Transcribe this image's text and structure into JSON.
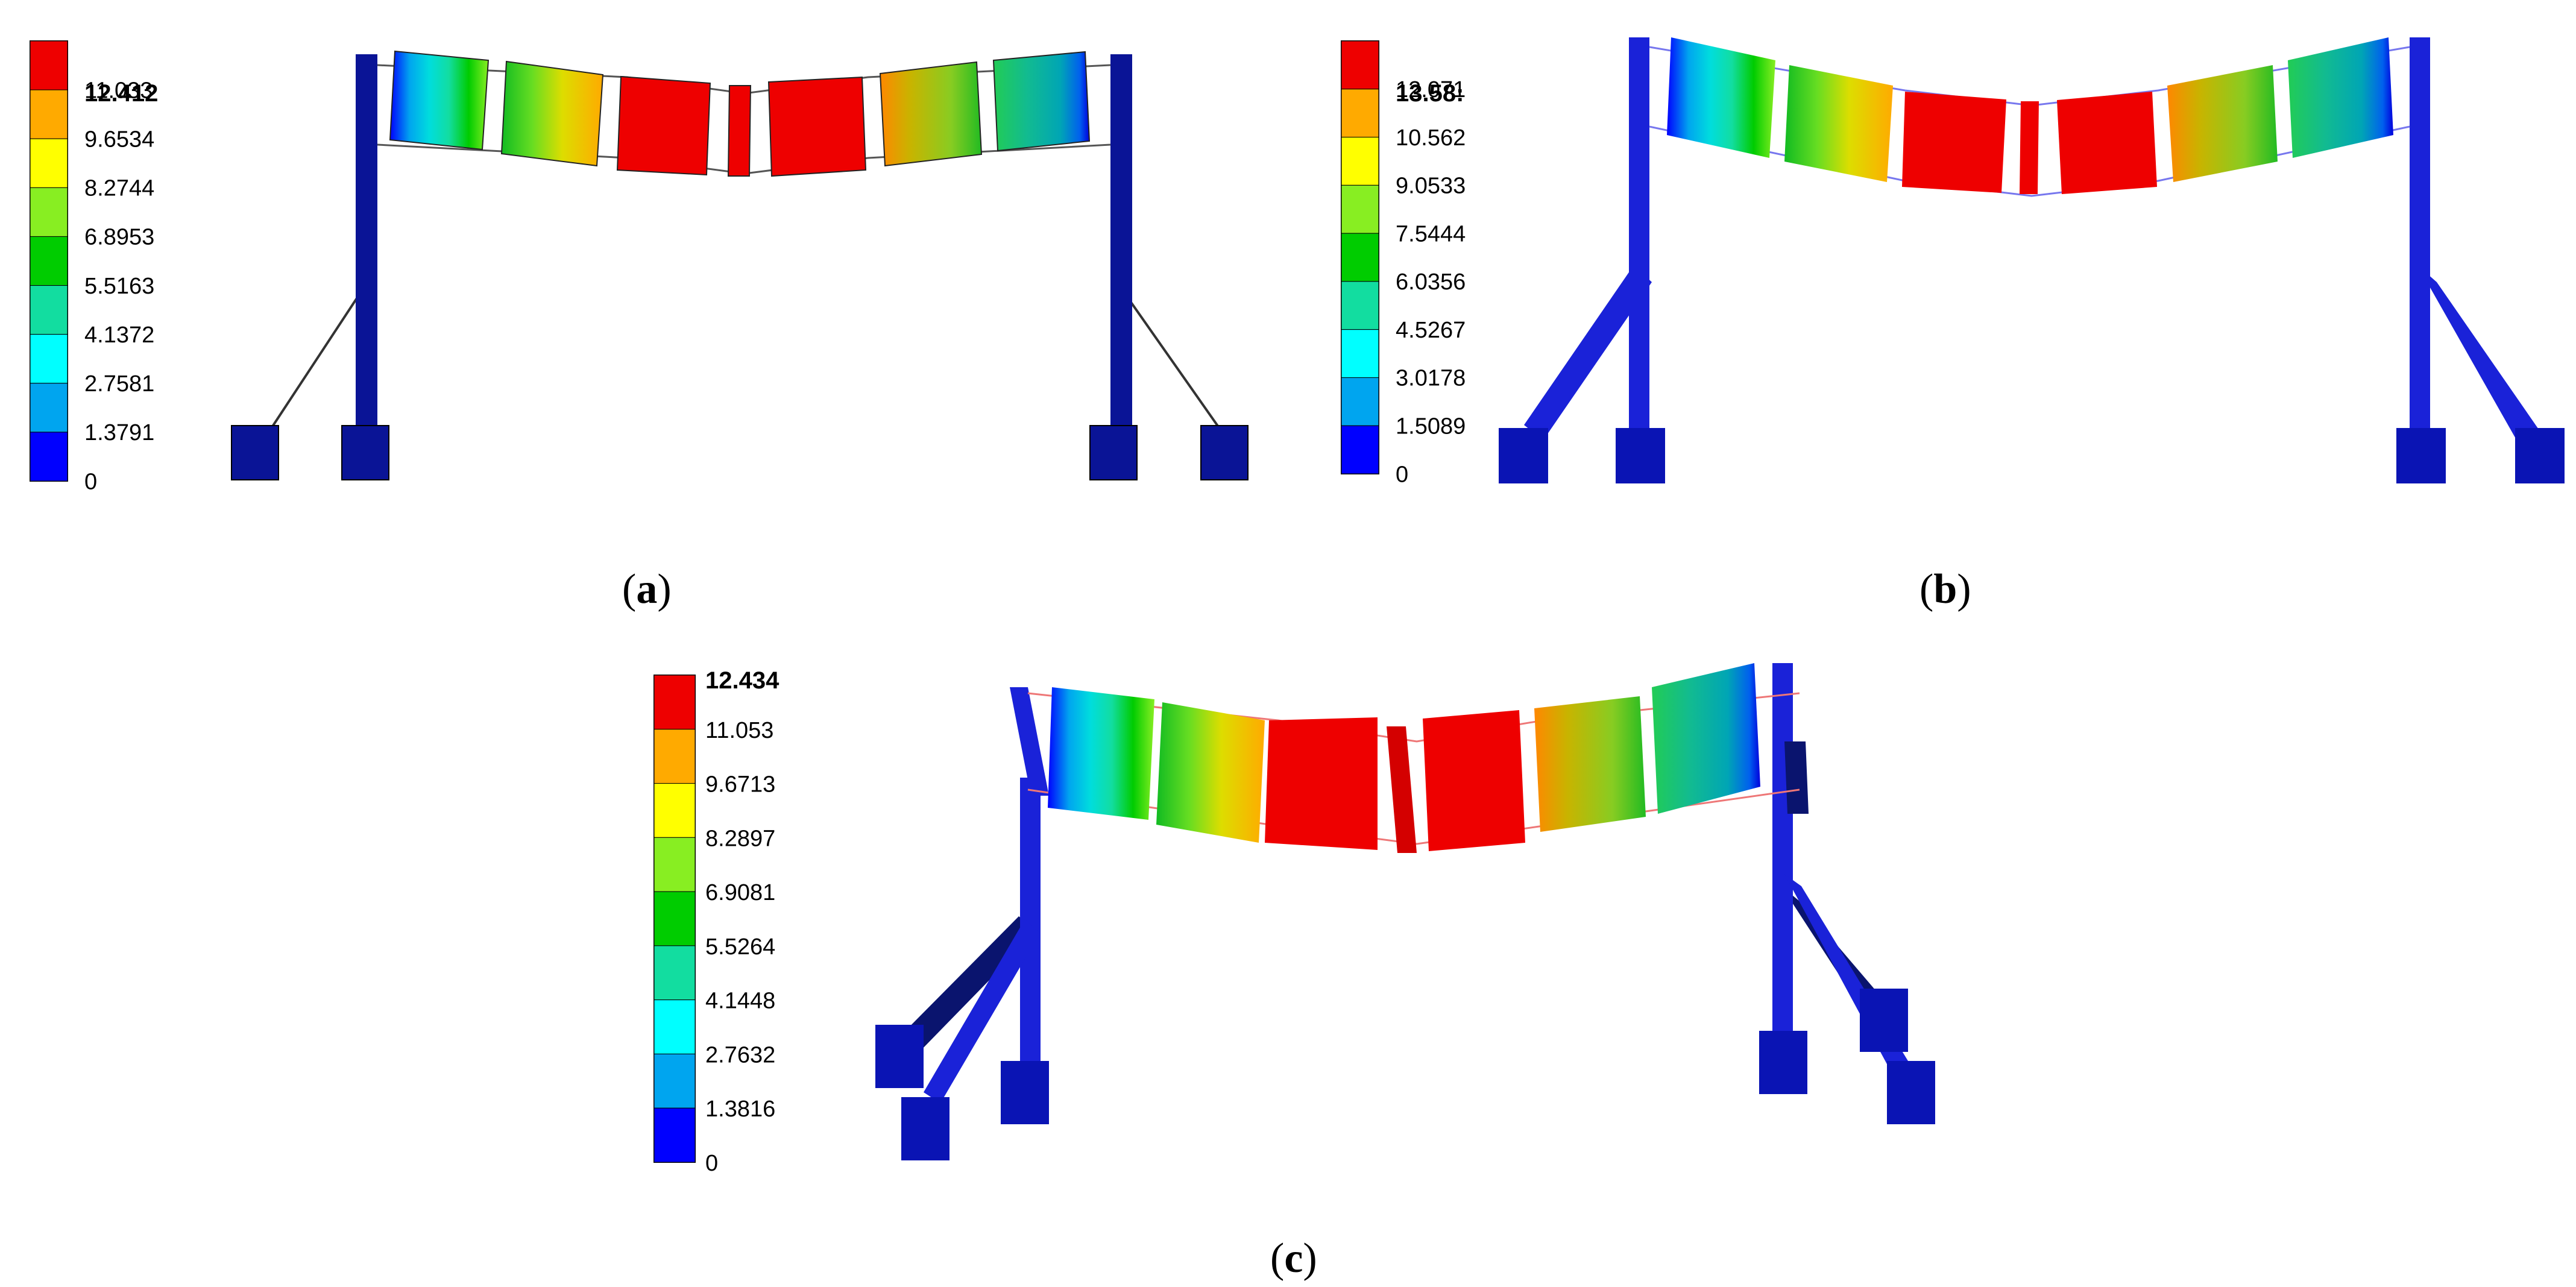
{
  "colors": {
    "scale": [
      "#0000ff",
      "#00a5ef",
      "#00ffff",
      "#12dda0",
      "#00cc00",
      "#88ee22",
      "#ffff00",
      "#ffaa00",
      "#ee0000"
    ],
    "structure": "#0a1496",
    "tie": "#333333"
  },
  "panels": [
    {
      "label_open": "(",
      "label_letter": "a",
      "label_close": ")",
      "legend": {
        "max": "12.412",
        "ticks": [
          "11.033",
          "9.6534",
          "8.2744",
          "6.8953",
          "5.5163",
          "4.1372",
          "2.7581",
          "1.3791",
          "0"
        ]
      }
    },
    {
      "label_open": "(",
      "label_letter": "b",
      "label_close": ")",
      "legend": {
        "max": "13.58:",
        "ticks": [
          "12.071",
          "10.562",
          "9.0533",
          "7.5444",
          "6.0356",
          "4.5267",
          "3.0178",
          "1.5089",
          "0"
        ]
      }
    },
    {
      "label_open": "(",
      "label_letter": "c",
      "label_close": ")",
      "legend": {
        "max": "12.434",
        "ticks": [
          "11.053",
          "9.6713",
          "8.2897",
          "6.9081",
          "5.5264",
          "4.1448",
          "2.7632",
          "1.3816",
          "0"
        ]
      }
    }
  ]
}
